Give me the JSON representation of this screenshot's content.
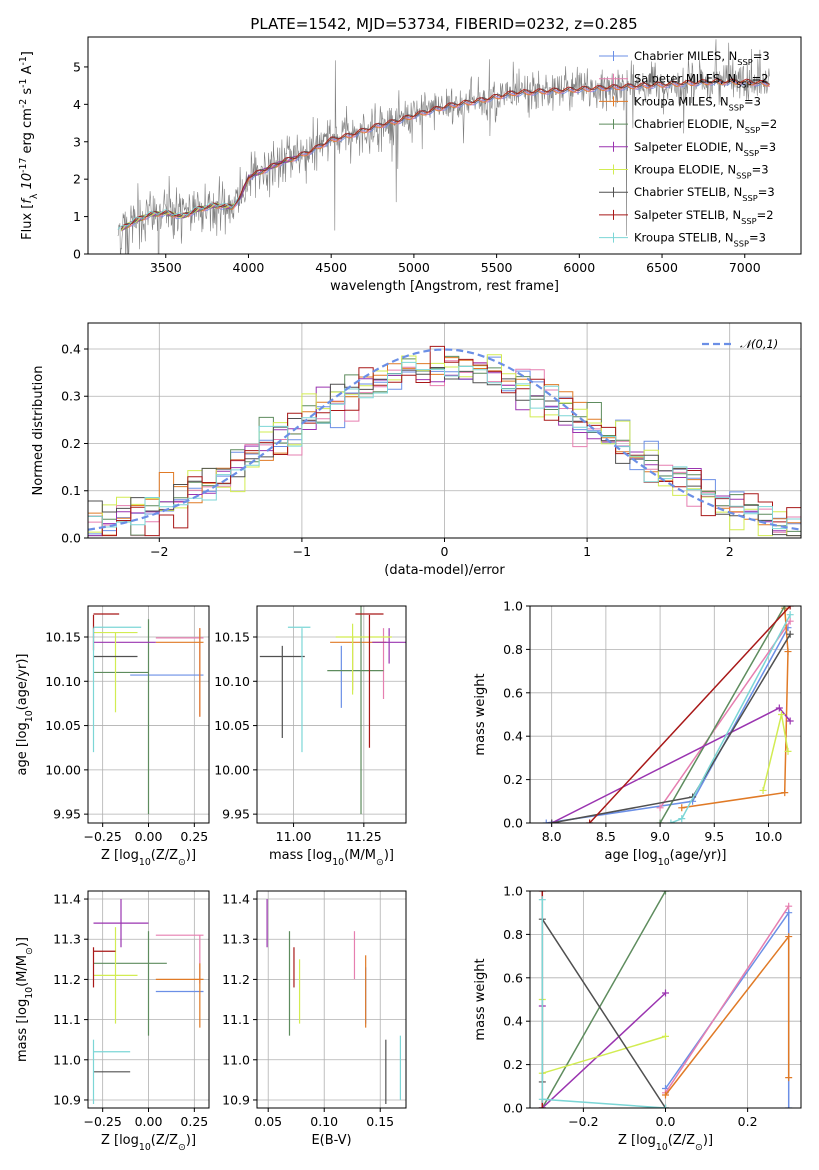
{
  "title": "PLATE=1542, MJD=53734, FIBERID=0232, z=0.285",
  "models": [
    {
      "name": "Chabrier MILES, N$_{SSP}$=3",
      "color": "#6b8fe6"
    },
    {
      "name": "Salpeter MILES, N$_{SSP}$=2",
      "color": "#e67fb0"
    },
    {
      "name": "Kroupa MILES, N$_{SSP}$=3",
      "color": "#e07a26"
    },
    {
      "name": "Chabrier ELODIE, N$_{SSP}$=2",
      "color": "#5e8c5e"
    },
    {
      "name": "Salpeter ELODIE, N$_{SSP}$=3",
      "color": "#9a34b0"
    },
    {
      "name": "Kroupa ELODIE, N$_{SSP}$=3",
      "color": "#d2ec52"
    },
    {
      "name": "Chabrier STELIB, N$_{SSP}$=3",
      "color": "#505050"
    },
    {
      "name": "Salpeter STELIB, N$_{SSP}$=2",
      "color": "#a81818"
    },
    {
      "name": "Kroupa STELIB, N$_{SSP}$=3",
      "color": "#7cd6d6"
    }
  ],
  "chart_data": [
    {
      "id": "spectrum",
      "type": "line",
      "title": "PLATE=1542, MJD=53734, FIBERID=0232, z=0.285",
      "xlabel": "wavelength [Angstrom, rest frame]",
      "ylabel": "Flux [$f_\\lambda 10^{-17}$ erg cm$^{-2}$ s$^{-1}$ A$^{-1}$]",
      "xlim": [
        3030,
        7340
      ],
      "ylim": [
        0,
        5.8
      ],
      "xticks": [
        3500,
        4000,
        4500,
        5000,
        5500,
        6000,
        6500,
        7000
      ],
      "yticks": [
        0,
        1,
        2,
        3,
        4,
        5
      ],
      "grid": false,
      "legend": "upper right",
      "data_color": "#808080",
      "continuum": {
        "x": [
          3210,
          3300,
          3400,
          3500,
          3600,
          3700,
          3800,
          3900,
          3950,
          4000,
          4100,
          4200,
          4300,
          4400,
          4500,
          4600,
          4700,
          4800,
          4900,
          5000,
          5200,
          5400,
          5600,
          5800,
          6000,
          6200,
          6400,
          6600,
          6800,
          7000,
          7150
        ],
        "y": [
          0.6,
          0.85,
          1.05,
          1.1,
          1.0,
          1.2,
          1.3,
          1.25,
          1.5,
          2.05,
          2.25,
          2.45,
          2.6,
          2.8,
          3.05,
          3.15,
          3.3,
          3.45,
          3.55,
          3.7,
          3.95,
          4.1,
          4.3,
          4.35,
          4.4,
          4.45,
          4.5,
          4.55,
          4.6,
          4.6,
          4.55
        ]
      }
    },
    {
      "id": "residuals",
      "type": "histogram",
      "xlabel": "(data-model)/error",
      "ylabel": "Normed distribution",
      "xlim": [
        -2.5,
        2.5
      ],
      "ylim": [
        0,
        0.455
      ],
      "xticks": [
        -2,
        -1,
        0,
        1,
        2
      ],
      "yticks": [
        0.0,
        0.1,
        0.2,
        0.3,
        0.4
      ],
      "grid": true,
      "legend": "upper right",
      "reference": {
        "label": "$\\mathcal{N}(0,1)$",
        "color": "#6b8fe6",
        "style": "dashed"
      }
    },
    {
      "id": "age_vs_Z",
      "type": "errorbar",
      "xlabel": "Z [log$_{10}$(Z/Z$_\\odot$)]",
      "ylabel": "age  [log$_{10}$(age/yr)]",
      "xlim": [
        -0.33,
        0.33
      ],
      "ylim": [
        9.94,
        10.185
      ],
      "xticks": [
        -0.25,
        0.0,
        0.25
      ],
      "yticks": [
        9.95,
        10.0,
        10.05,
        10.1,
        10.15
      ],
      "grid": true,
      "points": [
        {
          "x": 0.1,
          "xerr": 0.2,
          "y": 10.107,
          "yerr": 0.0,
          "model": 0
        },
        {
          "x": 0.17,
          "xerr": 0.13,
          "y": 10.149,
          "yerr": 0.0,
          "model": 1
        },
        {
          "x": 0.28,
          "xerr": 0.0,
          "y": 10.11,
          "yerr": 0.05,
          "model": 1
        },
        {
          "x": 0.17,
          "xerr": 0.13,
          "y": 10.144,
          "yerr": 0.0,
          "model": 2
        },
        {
          "x": 0.28,
          "xerr": 0.0,
          "y": 10.11,
          "yerr": 0.05,
          "model": 2
        },
        {
          "x": -0.15,
          "xerr": 0.15,
          "y": 10.11,
          "yerr": 0.0,
          "model": 3
        },
        {
          "x": 0.0,
          "xerr": 0.0,
          "y": 10.06,
          "yerr": 0.11,
          "model": 3
        },
        {
          "x": -0.13,
          "xerr": 0.17,
          "y": 10.144,
          "yerr": 0.0,
          "model": 4
        },
        {
          "x": -0.18,
          "xerr": 0.0,
          "y": 10.11,
          "yerr": 0.045,
          "model": 5
        },
        {
          "x": -0.18,
          "xerr": 0.12,
          "y": 10.155,
          "yerr": 0.0,
          "model": 5
        },
        {
          "x": -0.18,
          "xerr": 0.12,
          "y": 10.128,
          "yerr": 0.0,
          "model": 6
        },
        {
          "x": -0.23,
          "xerr": 0.07,
          "y": 10.176,
          "yerr": 0.0,
          "model": 7
        },
        {
          "x": -0.3,
          "xerr": 0.0,
          "y": 10.155,
          "yerr": 0.02,
          "model": 7
        },
        {
          "x": -0.17,
          "xerr": 0.13,
          "y": 10.161,
          "yerr": 0.0,
          "model": 8
        },
        {
          "x": -0.3,
          "xerr": 0.0,
          "y": 10.09,
          "yerr": 0.07,
          "model": 8
        }
      ]
    },
    {
      "id": "age_vs_mass",
      "type": "errorbar",
      "xlabel": "mass [log$_{10}$(M/M$_\\odot$)]",
      "ylabel": "",
      "xlim": [
        10.87,
        11.4
      ],
      "ylim": [
        9.94,
        10.185
      ],
      "xticks": [
        11.0,
        11.25
      ],
      "yticks": [
        9.95,
        10.0,
        10.05,
        10.1,
        10.15
      ],
      "grid": true,
      "points": [
        {
          "x": 11.17,
          "xerr": 0.0,
          "y": 10.105,
          "yerr": 0.035,
          "model": 0
        },
        {
          "x": 11.32,
          "xerr": 0.0,
          "y": 10.12,
          "yerr": 0.04,
          "model": 1
        },
        {
          "x": 11.23,
          "xerr": 0.1,
          "y": 10.144,
          "yerr": 0.0,
          "model": 2
        },
        {
          "x": 11.21,
          "xerr": 0.0,
          "y": 10.12,
          "yerr": 0.03,
          "model": 2
        },
        {
          "x": 11.24,
          "xerr": 0.0,
          "y": 10.08,
          "yerr": 0.13,
          "model": 3
        },
        {
          "x": 11.22,
          "xerr": 0.1,
          "y": 10.112,
          "yerr": 0.0,
          "model": 3
        },
        {
          "x": 11.34,
          "xerr": 0.06,
          "y": 10.144,
          "yerr": 0.0,
          "model": 4
        },
        {
          "x": 11.34,
          "xerr": 0.0,
          "y": 10.14,
          "yerr": 0.02,
          "model": 4
        },
        {
          "x": 11.21,
          "xerr": 0.0,
          "y": 10.125,
          "yerr": 0.04,
          "model": 5
        },
        {
          "x": 11.25,
          "xerr": 0.1,
          "y": 10.15,
          "yerr": 0.0,
          "model": 5
        },
        {
          "x": 10.96,
          "xerr": 0.08,
          "y": 10.128,
          "yerr": 0.0,
          "model": 6
        },
        {
          "x": 10.96,
          "xerr": 0.0,
          "y": 10.088,
          "yerr": 0.052,
          "model": 6
        },
        {
          "x": 11.27,
          "xerr": 0.05,
          "y": 10.176,
          "yerr": 0.0,
          "model": 7
        },
        {
          "x": 11.27,
          "xerr": 0.0,
          "y": 10.1,
          "yerr": 0.075,
          "model": 7
        },
        {
          "x": 11.02,
          "xerr": 0.04,
          "y": 10.161,
          "yerr": 0.0,
          "model": 8
        },
        {
          "x": 11.03,
          "xerr": 0.0,
          "y": 10.09,
          "yerr": 0.07,
          "model": 8
        }
      ]
    },
    {
      "id": "mw_vs_age",
      "type": "line",
      "xlabel": "age  [log$_{10}$(age/yr)]",
      "ylabel": "mass weight",
      "xlim": [
        7.8,
        10.3
      ],
      "ylim": [
        0,
        1
      ],
      "xticks": [
        8.0,
        8.5,
        9.0,
        9.5,
        10.0
      ],
      "yticks": [
        0.0,
        0.2,
        0.4,
        0.6,
        0.8,
        1.0
      ],
      "grid": true,
      "series": [
        {
          "model": 0,
          "x": [
            7.95,
            9.3,
            10.18
          ],
          "y": [
            0.0,
            0.1,
            0.9
          ]
        },
        {
          "model": 1,
          "x": [
            9.0,
            10.2
          ],
          "y": [
            0.07,
            0.93
          ]
        },
        {
          "model": 2,
          "x": [
            9.2,
            10.15,
            10.18,
            10.15
          ],
          "y": [
            0.07,
            0.14,
            0.79,
            0.99
          ]
        },
        {
          "model": 3,
          "x": [
            9.0,
            10.15
          ],
          "y": [
            0.0,
            1.0
          ]
        },
        {
          "model": 4,
          "x": [
            8.0,
            10.1,
            10.2
          ],
          "y": [
            0.0,
            0.53,
            0.47
          ]
        },
        {
          "model": 5,
          "x": [
            9.95,
            10.12,
            10.18
          ],
          "y": [
            0.15,
            0.5,
            0.33
          ]
        },
        {
          "model": 6,
          "x": [
            8.0,
            9.3,
            10.2
          ],
          "y": [
            0.0,
            0.12,
            0.87
          ]
        },
        {
          "model": 7,
          "x": [
            8.35,
            10.2
          ],
          "y": [
            0.0,
            1.0
          ]
        },
        {
          "model": 8,
          "x": [
            9.1,
            9.2,
            10.2
          ],
          "y": [
            0.0,
            0.02,
            0.96
          ]
        }
      ]
    },
    {
      "id": "mass_vs_Z",
      "type": "errorbar",
      "xlabel": "Z [log$_{10}$(Z/Z$_\\odot$)]",
      "ylabel": "mass [log$_{10}$(M/M$_\\odot$)]",
      "xlim": [
        -0.33,
        0.33
      ],
      "ylim": [
        10.88,
        11.42
      ],
      "xticks": [
        -0.25,
        0.0,
        0.25
      ],
      "yticks": [
        10.9,
        11.0,
        11.1,
        11.2,
        11.3,
        11.4
      ],
      "grid": true,
      "points": [
        {
          "x": 0.17,
          "xerr": 0.13,
          "y": 11.17,
          "yerr": 0.0,
          "model": 0
        },
        {
          "x": 0.17,
          "xerr": 0.13,
          "y": 11.31,
          "yerr": 0.0,
          "model": 1
        },
        {
          "x": 0.28,
          "xerr": 0.0,
          "y": 11.25,
          "yerr": 0.06,
          "model": 1
        },
        {
          "x": 0.17,
          "xerr": 0.13,
          "y": 11.2,
          "yerr": 0.0,
          "model": 2
        },
        {
          "x": 0.28,
          "xerr": 0.0,
          "y": 11.16,
          "yerr": 0.08,
          "model": 2
        },
        {
          "x": -0.1,
          "xerr": 0.2,
          "y": 11.24,
          "yerr": 0.0,
          "model": 3
        },
        {
          "x": 0.0,
          "xerr": 0.0,
          "y": 11.19,
          "yerr": 0.13,
          "model": 3
        },
        {
          "x": -0.15,
          "xerr": 0.15,
          "y": 11.34,
          "yerr": 0.0,
          "model": 4
        },
        {
          "x": -0.15,
          "xerr": 0.0,
          "y": 11.34,
          "yerr": 0.06,
          "model": 4
        },
        {
          "x": -0.18,
          "xerr": 0.12,
          "y": 11.21,
          "yerr": 0.0,
          "model": 5
        },
        {
          "x": -0.18,
          "xerr": 0.0,
          "y": 11.21,
          "yerr": 0.12,
          "model": 5
        },
        {
          "x": -0.2,
          "xerr": 0.1,
          "y": 10.97,
          "yerr": 0.0,
          "model": 6
        },
        {
          "x": -0.24,
          "xerr": 0.06,
          "y": 11.27,
          "yerr": 0.0,
          "model": 7
        },
        {
          "x": -0.3,
          "xerr": 0.0,
          "y": 11.23,
          "yerr": 0.05,
          "model": 7
        },
        {
          "x": -0.2,
          "xerr": 0.1,
          "y": 11.02,
          "yerr": 0.0,
          "model": 8
        },
        {
          "x": -0.3,
          "xerr": 0.0,
          "y": 10.97,
          "yerr": 0.08,
          "model": 8
        }
      ]
    },
    {
      "id": "mass_vs_ebv",
      "type": "errorbar",
      "xlabel": "E(B-V)",
      "ylabel": "",
      "xlim": [
        0.04,
        0.173
      ],
      "ylim": [
        10.88,
        11.42
      ],
      "xticks": [
        0.05,
        0.1,
        0.15
      ],
      "yticks": [
        10.9,
        11.0,
        11.1,
        11.2,
        11.3,
        11.4
      ],
      "grid": true,
      "points": [
        {
          "x": 0.137,
          "xerr": 0.0,
          "y": 11.16,
          "yerr": 0.07,
          "model": 0
        },
        {
          "x": 0.127,
          "xerr": 0.0,
          "y": 11.26,
          "yerr": 0.06,
          "model": 1
        },
        {
          "x": 0.137,
          "xerr": 0.0,
          "y": 11.17,
          "yerr": 0.09,
          "model": 2
        },
        {
          "x": 0.069,
          "xerr": 0.0,
          "y": 11.19,
          "yerr": 0.13,
          "model": 3
        },
        {
          "x": 0.049,
          "xerr": 0.0,
          "y": 11.34,
          "yerr": 0.06,
          "model": 4
        },
        {
          "x": 0.078,
          "xerr": 0.0,
          "y": 11.17,
          "yerr": 0.08,
          "model": 5
        },
        {
          "x": 0.155,
          "xerr": 0.0,
          "y": 10.97,
          "yerr": 0.08,
          "model": 6
        },
        {
          "x": 0.073,
          "xerr": 0.0,
          "y": 11.23,
          "yerr": 0.05,
          "model": 7
        },
        {
          "x": 0.168,
          "xerr": 0.0,
          "y": 10.98,
          "yerr": 0.08,
          "model": 8
        }
      ]
    },
    {
      "id": "mw_vs_Z",
      "type": "line",
      "xlabel": "Z [log$_{10}$(Z/Z$_\\odot$)]",
      "ylabel": "mass weight",
      "xlim": [
        -0.33,
        0.33
      ],
      "ylim": [
        0,
        1
      ],
      "xticks": [
        -0.2,
        0.0,
        0.2
      ],
      "yticks": [
        0.0,
        0.2,
        0.4,
        0.6,
        0.8,
        1.0
      ],
      "grid": true,
      "series": [
        {
          "model": 0,
          "x": [
            0.0,
            0.3,
            0.3
          ],
          "y": [
            0.09,
            0.9,
            0.0
          ]
        },
        {
          "model": 1,
          "x": [
            0.0,
            0.3
          ],
          "y": [
            0.07,
            0.93
          ]
        },
        {
          "model": 2,
          "x": [
            0.0,
            0.3,
            0.3
          ],
          "y": [
            0.06,
            0.79,
            0.14
          ]
        },
        {
          "model": 3,
          "x": [
            -0.3,
            0.0
          ],
          "y": [
            0.0,
            1.0
          ]
        },
        {
          "model": 4,
          "x": [
            -0.3,
            -0.3,
            0.0
          ],
          "y": [
            0.47,
            0.0,
            0.53
          ]
        },
        {
          "model": 5,
          "x": [
            -0.3,
            -0.3,
            0.0
          ],
          "y": [
            0.5,
            0.16,
            0.33
          ]
        },
        {
          "model": 6,
          "x": [
            -0.3,
            -0.3,
            0.0
          ],
          "y": [
            0.12,
            0.87,
            0.0
          ]
        },
        {
          "model": 7,
          "x": [
            -0.3,
            -0.3
          ],
          "y": [
            0.0,
            1.0
          ]
        },
        {
          "model": 8,
          "x": [
            -0.3,
            -0.3,
            0.0
          ],
          "y": [
            0.96,
            0.04,
            0.0
          ]
        }
      ]
    }
  ]
}
